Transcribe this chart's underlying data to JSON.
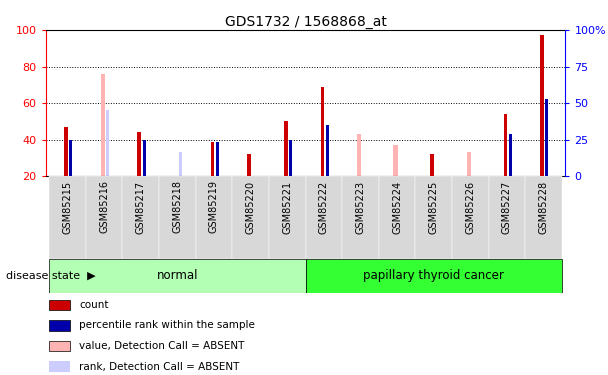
{
  "title": "GDS1732 / 1568868_at",
  "samples": [
    "GSM85215",
    "GSM85216",
    "GSM85217",
    "GSM85218",
    "GSM85219",
    "GSM85220",
    "GSM85221",
    "GSM85222",
    "GSM85223",
    "GSM85224",
    "GSM85225",
    "GSM85226",
    "GSM85227",
    "GSM85228"
  ],
  "count_values": [
    47,
    null,
    44,
    null,
    39,
    32,
    50,
    69,
    null,
    null,
    32,
    null,
    54,
    97
  ],
  "rank_values": [
    40,
    null,
    40,
    null,
    39,
    null,
    40,
    48,
    null,
    null,
    null,
    null,
    43,
    62
  ],
  "absent_value_values": [
    null,
    76,
    null,
    null,
    null,
    null,
    null,
    null,
    43,
    37,
    null,
    33,
    null,
    null
  ],
  "absent_rank_values": [
    null,
    56,
    null,
    33,
    null,
    null,
    null,
    null,
    null,
    null,
    null,
    null,
    null,
    null
  ],
  "ylim": [
    20,
    100
  ],
  "yticks_left": [
    20,
    40,
    60,
    80,
    100
  ],
  "yticks_right_labels": [
    "0",
    "25",
    "50",
    "75",
    "100%"
  ],
  "yticks_right_pos": [
    20,
    40,
    60,
    80,
    100
  ],
  "normal_group": [
    "GSM85215",
    "GSM85216",
    "GSM85217",
    "GSM85218",
    "GSM85219",
    "GSM85220",
    "GSM85221"
  ],
  "cancer_group": [
    "GSM85222",
    "GSM85223",
    "GSM85224",
    "GSM85225",
    "GSM85226",
    "GSM85227",
    "GSM85228"
  ],
  "color_count": "#cc0000",
  "color_rank": "#0000aa",
  "color_absent_value": "#ffb3b3",
  "color_absent_rank": "#ccccff",
  "normal_bg": "#b3ffb3",
  "cancer_bg": "#33ff33",
  "tick_bg": "#d8d8d8"
}
